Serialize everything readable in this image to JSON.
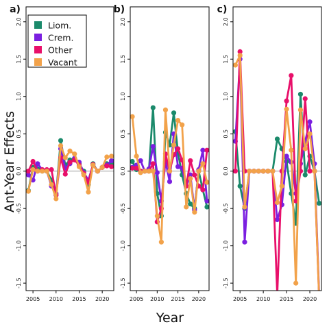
{
  "figure": {
    "ylabel": "Ant-Year Effects",
    "xlabel": "Year"
  },
  "legend": {
    "items": [
      {
        "label": "Liom.",
        "color": "#1b8a6b"
      },
      {
        "label": "Crem.",
        "color": "#7b1fe0"
      },
      {
        "label": "Other",
        "color": "#e8106a"
      },
      {
        "label": "Vacant",
        "color": "#f2a24a"
      }
    ]
  },
  "chart_data": [
    {
      "type": "line",
      "panel": "a)",
      "xlim": [
        2003.5,
        2022.5
      ],
      "ylim": [
        -1.6,
        2.2
      ],
      "xticks": [
        2005,
        2010,
        2015,
        2020
      ],
      "yticks": [
        -1.5,
        -1.0,
        -0.5,
        0.0,
        0.5,
        1.0,
        1.5,
        2.0
      ],
      "x": [
        2004,
        2005,
        2006,
        2007,
        2008,
        2009,
        2010,
        2011,
        2012,
        2013,
        2014,
        2015,
        2016,
        2017,
        2018,
        2019,
        2020,
        2021,
        2022
      ],
      "series": [
        {
          "name": "Liom.",
          "values": [
            -0.26,
            0.05,
            0.03,
            0.0,
            0.0,
            -0.12,
            -0.32,
            0.41,
            0.08,
            0.15,
            0.17,
            0.1,
            0.0,
            -0.18,
            0.1,
            0.0,
            0.05,
            0.1,
            0.1
          ]
        },
        {
          "name": "Crem.",
          "values": [
            -0.05,
            -0.12,
            0.1,
            0.02,
            0.0,
            -0.2,
            -0.3,
            0.3,
            0.04,
            0.1,
            0.17,
            0.12,
            -0.02,
            -0.12,
            0.08,
            0.0,
            0.05,
            0.08,
            0.14
          ]
        },
        {
          "name": "Other",
          "values": [
            0.0,
            0.13,
            0.0,
            0.02,
            0.02,
            0.02,
            -0.32,
            0.18,
            -0.04,
            0.12,
            0.15,
            0.08,
            -0.03,
            -0.15,
            0.09,
            0.0,
            0.05,
            0.07,
            0.06
          ]
        },
        {
          "name": "Vacant",
          "values": [
            -0.27,
            0.02,
            0.0,
            0.0,
            0.0,
            -0.18,
            -0.37,
            0.34,
            0.18,
            0.27,
            0.23,
            0.06,
            -0.05,
            -0.28,
            0.08,
            0.0,
            0.05,
            0.19,
            0.2
          ]
        }
      ]
    },
    {
      "type": "line",
      "panel": "b)",
      "xlim": [
        2003.5,
        2022.5
      ],
      "ylim": [
        -1.6,
        2.2
      ],
      "xticks": [
        2005,
        2010,
        2015,
        2020
      ],
      "yticks": [
        -1.5,
        -1.0,
        -0.5,
        0.0,
        0.5,
        1.0,
        1.5,
        2.0
      ],
      "x": [
        2004,
        2005,
        2006,
        2007,
        2008,
        2009,
        2010,
        2011,
        2012,
        2013,
        2014,
        2015,
        2016,
        2017,
        2018,
        2019,
        2020,
        2021,
        2022
      ],
      "series": [
        {
          "name": "Liom.",
          "values": [
            0.13,
            0.02,
            0.0,
            0.0,
            0.0,
            0.85,
            -0.3,
            -0.6,
            0.52,
            0.35,
            0.78,
            0.25,
            -0.05,
            -0.3,
            -0.44,
            -0.5,
            0.0,
            -0.25,
            -0.48
          ]
        },
        {
          "name": "Crem.",
          "values": [
            0.05,
            0.08,
            0.14,
            0.0,
            0.03,
            0.33,
            -0.02,
            -0.4,
            0.13,
            -0.14,
            0.5,
            0.06,
            0.04,
            -0.2,
            -0.05,
            -0.52,
            0.02,
            0.28,
            -0.4
          ]
        },
        {
          "name": "Other",
          "values": [
            0.04,
            0.04,
            0.0,
            0.0,
            0.0,
            0.1,
            -0.68,
            -0.5,
            0.23,
            0.0,
            0.22,
            0.3,
            0.15,
            -0.2,
            0.14,
            -0.05,
            -0.2,
            -0.25,
            0.28
          ]
        },
        {
          "name": "Vacant",
          "values": [
            0.73,
            0.2,
            -0.02,
            0.0,
            0.0,
            0.0,
            -0.6,
            -0.95,
            0.82,
            0.0,
            0.35,
            0.68,
            0.62,
            -0.48,
            -0.1,
            -0.55,
            0.0,
            0.1,
            -0.15
          ]
        }
      ]
    },
    {
      "type": "line",
      "panel": "c)",
      "xlim": [
        2003.5,
        2022.5
      ],
      "ylim": [
        -1.6,
        2.2
      ],
      "xticks": [
        2005,
        2010,
        2015,
        2020
      ],
      "yticks": [
        -1.5,
        -1.0,
        -0.5,
        0.0,
        0.5,
        1.0,
        1.5,
        2.0
      ],
      "x": [
        2004,
        2005,
        2006,
        2007,
        2008,
        2009,
        2010,
        2011,
        2012,
        2013,
        2014,
        2015,
        2016,
        2017,
        2018,
        2019,
        2020,
        2021,
        2022
      ],
      "series": [
        {
          "name": "Liom.",
          "values": [
            0.53,
            -0.2,
            -0.5,
            0.0,
            0.0,
            0.0,
            0.0,
            0.0,
            0.0,
            0.43,
            0.3,
            0.13,
            -0.3,
            -0.7,
            1.03,
            -0.05,
            0.2,
            0.0,
            -0.43
          ]
        },
        {
          "name": "Crem.",
          "values": [
            0.4,
            1.5,
            -0.95,
            0.0,
            0.0,
            0.0,
            0.0,
            0.0,
            0.0,
            -0.65,
            -0.45,
            0.2,
            0.12,
            -0.3,
            0.1,
            0.4,
            0.66,
            0.1,
            -1.65
          ]
        },
        {
          "name": "Other",
          "values": [
            0.0,
            1.6,
            0.0,
            0.0,
            0.0,
            0.0,
            0.0,
            0.0,
            0.0,
            -1.65,
            0.0,
            0.94,
            1.28,
            -0.4,
            0.0,
            0.97,
            0.0,
            0.0,
            -1.7
          ]
        },
        {
          "name": "Vacant",
          "values": [
            1.42,
            1.55,
            -0.48,
            0.0,
            0.0,
            0.0,
            0.0,
            0.0,
            0.0,
            -0.42,
            -0.2,
            0.83,
            0.28,
            -1.5,
            0.82,
            0.3,
            0.5,
            0.0,
            -1.7
          ]
        }
      ]
    }
  ]
}
